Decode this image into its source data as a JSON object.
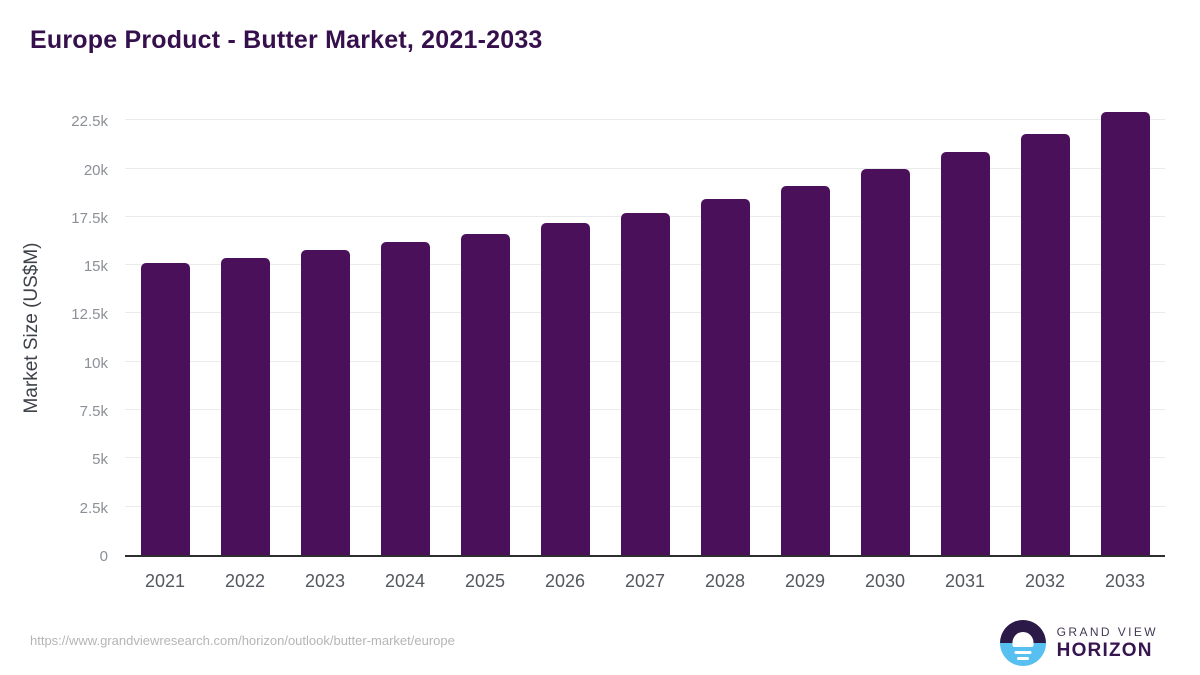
{
  "page": {
    "title": "Europe Product - Butter Market, 2021-2033",
    "source_url": "https://www.grandviewresearch.com/horizon/outlook/butter-market/europe"
  },
  "logo": {
    "top_text": "GRAND VIEW",
    "bottom_text": "HORIZON",
    "icon": "sunrise-horizon-icon",
    "colors": {
      "dark_half": "#2b1a47",
      "blue_half": "#58c0f0",
      "text_dark": "#371551"
    }
  },
  "chart_data": {
    "type": "bar",
    "title": "Europe Product - Butter Market, 2021-2033",
    "xlabel": "",
    "ylabel": "Market Size (US$M)",
    "categories": [
      "2021",
      "2022",
      "2023",
      "2024",
      "2025",
      "2026",
      "2027",
      "2028",
      "2029",
      "2030",
      "2031",
      "2032",
      "2033"
    ],
    "values": [
      15200,
      15450,
      15850,
      16250,
      16700,
      17250,
      17800,
      18500,
      19200,
      20050,
      20950,
      21900,
      23050
    ],
    "ylim": [
      0,
      23650
    ],
    "yticks": [
      {
        "value": 0,
        "label": "0"
      },
      {
        "value": 2500,
        "label": "2.5k"
      },
      {
        "value": 5000,
        "label": "5k"
      },
      {
        "value": 7500,
        "label": "7.5k"
      },
      {
        "value": 10000,
        "label": "10k"
      },
      {
        "value": 12500,
        "label": "12.5k"
      },
      {
        "value": 15000,
        "label": "15k"
      },
      {
        "value": 17500,
        "label": "17.5k"
      },
      {
        "value": 20000,
        "label": "20k"
      },
      {
        "value": 22500,
        "label": "22.5k"
      }
    ],
    "grid": "horizontal",
    "legend": "none",
    "bar_color": "#4a1059"
  }
}
